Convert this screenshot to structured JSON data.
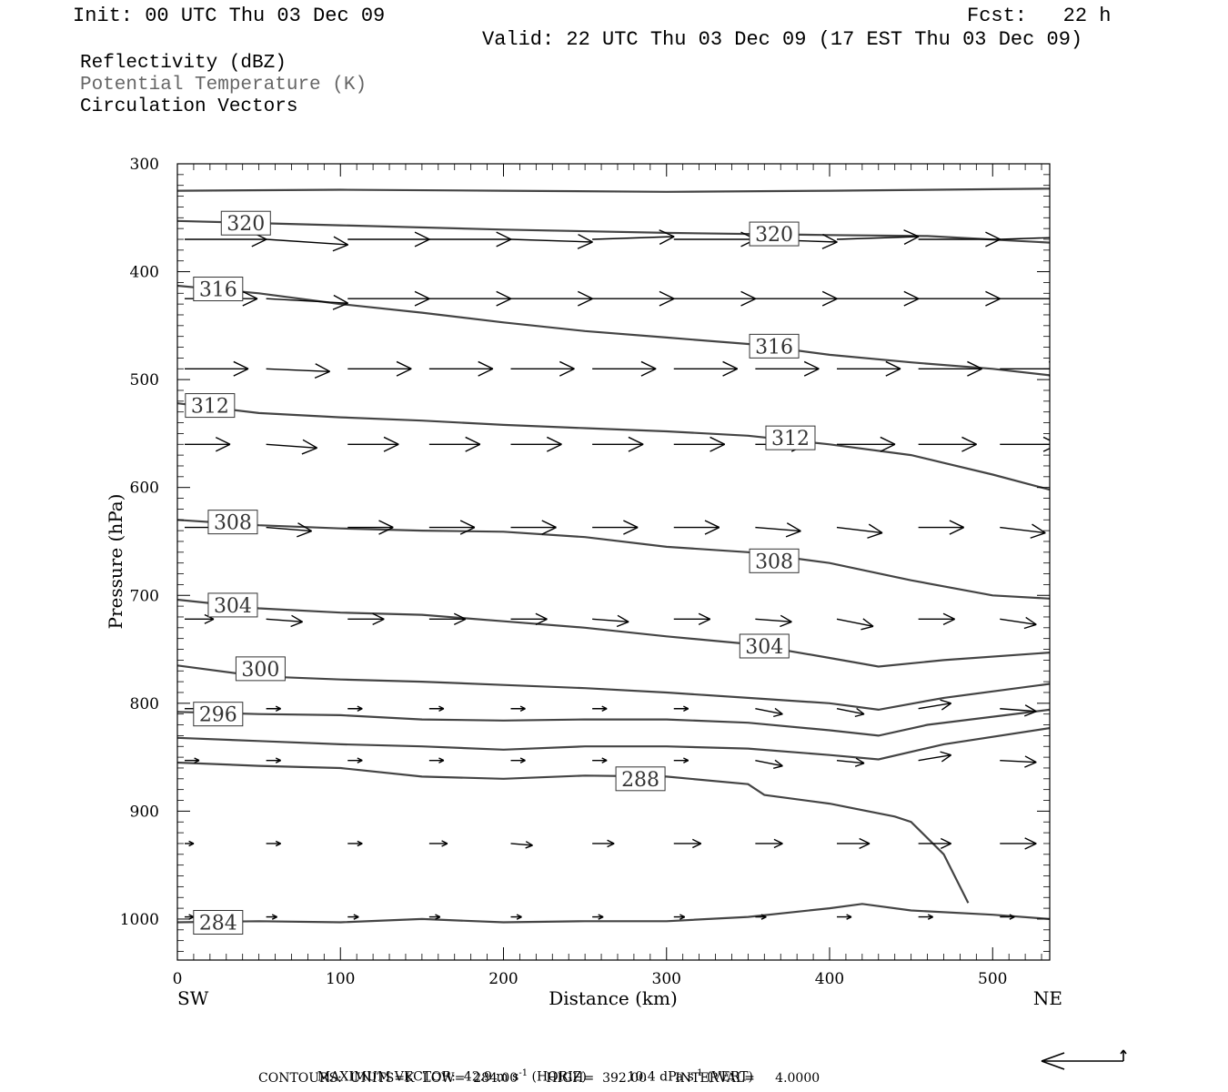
{
  "header": {
    "init": "Init: 00 UTC Thu 03 Dec 09",
    "fcst": "Fcst:   22 h",
    "valid": "Valid: 22 UTC Thu 03 Dec 09 (17 EST Thu 03 Dec 09)"
  },
  "fields": [
    {
      "label": "Reflectivity (dBZ)",
      "color": "#000000"
    },
    {
      "label": "Potential Temperature (K)",
      "color": "#555555"
    },
    {
      "label": "Circulation Vectors",
      "color": "#000000"
    }
  ],
  "footer": {
    "max_vector_prefix": "MAXIMUM VECTOR:",
    "horiz_value": "42.9 m s",
    "horiz_exp": "-1",
    "horiz_label": "(HORIZ)",
    "vert_value": "10.4 dPa s",
    "vert_exp": "-1",
    "vert_label": "(VERT)",
    "contours": "CONTOURS:  UNITS=K  LOW=  284.00       HIGH=  392.00       INTERVAL=     4.0000"
  },
  "chart_data": {
    "type": "line",
    "xlabel": "Distance (km)",
    "ylabel": "Pressure (hPa)",
    "xlim": [
      0,
      535
    ],
    "ylim": [
      1038,
      300
    ],
    "x_ticks": [
      0,
      100,
      200,
      300,
      400,
      500
    ],
    "y_ticks": [
      300,
      400,
      500,
      600,
      700,
      800,
      900,
      1000
    ],
    "left_end_label": "SW",
    "right_end_label": "NE",
    "contour_color": "#444444",
    "vector_color": "#000000",
    "contours": [
      {
        "level": 324,
        "points": [
          [
            0,
            325
          ],
          [
            100,
            324
          ],
          [
            200,
            325
          ],
          [
            300,
            326
          ],
          [
            400,
            325
          ],
          [
            535,
            323
          ]
        ],
        "labels": []
      },
      {
        "level": 320,
        "points": [
          [
            0,
            353
          ],
          [
            100,
            357
          ],
          [
            200,
            361
          ],
          [
            300,
            364
          ],
          [
            400,
            366
          ],
          [
            460,
            367
          ],
          [
            535,
            373
          ]
        ],
        "labels": [
          {
            "x": 42,
            "p": 355,
            "text": "320"
          },
          {
            "x": 366,
            "p": 365,
            "text": "320"
          }
        ]
      },
      {
        "level": 316,
        "points": [
          [
            0,
            413
          ],
          [
            50,
            420
          ],
          [
            100,
            430
          ],
          [
            150,
            438
          ],
          [
            200,
            447
          ],
          [
            250,
            455
          ],
          [
            300,
            461
          ],
          [
            350,
            467
          ],
          [
            400,
            477
          ],
          [
            450,
            484
          ],
          [
            500,
            490
          ],
          [
            535,
            496
          ]
        ],
        "labels": [
          {
            "x": 25,
            "p": 416,
            "text": "316"
          },
          {
            "x": 366,
            "p": 469,
            "text": "316"
          }
        ]
      },
      {
        "level": 312,
        "points": [
          [
            0,
            522
          ],
          [
            50,
            531
          ],
          [
            100,
            535
          ],
          [
            150,
            538
          ],
          [
            200,
            542
          ],
          [
            250,
            545
          ],
          [
            300,
            548
          ],
          [
            350,
            552
          ],
          [
            400,
            560
          ],
          [
            450,
            570
          ],
          [
            500,
            588
          ],
          [
            535,
            602
          ]
        ],
        "labels": [
          {
            "x": 20,
            "p": 524,
            "text": "312"
          },
          {
            "x": 376,
            "p": 554,
            "text": "312"
          }
        ]
      },
      {
        "level": 308,
        "points": [
          [
            0,
            630
          ],
          [
            50,
            635
          ],
          [
            100,
            638
          ],
          [
            150,
            640
          ],
          [
            200,
            641
          ],
          [
            250,
            646
          ],
          [
            300,
            655
          ],
          [
            350,
            660
          ],
          [
            400,
            670
          ],
          [
            450,
            686
          ],
          [
            500,
            700
          ],
          [
            535,
            703
          ]
        ],
        "labels": [
          {
            "x": 34,
            "p": 632,
            "text": "308"
          },
          {
            "x": 366,
            "p": 668,
            "text": "308"
          }
        ]
      },
      {
        "level": 304,
        "points": [
          [
            0,
            704
          ],
          [
            50,
            712
          ],
          [
            100,
            716
          ],
          [
            150,
            718
          ],
          [
            200,
            724
          ],
          [
            250,
            730
          ],
          [
            300,
            738
          ],
          [
            350,
            745
          ],
          [
            400,
            758
          ],
          [
            430,
            766
          ],
          [
            470,
            760
          ],
          [
            535,
            753
          ]
        ],
        "labels": [
          {
            "x": 34,
            "p": 709,
            "text": "304"
          },
          {
            "x": 360,
            "p": 747,
            "text": "304"
          }
        ]
      },
      {
        "level": 300,
        "points": [
          [
            0,
            765
          ],
          [
            50,
            775
          ],
          [
            100,
            778
          ],
          [
            150,
            780
          ],
          [
            200,
            783
          ],
          [
            250,
            786
          ],
          [
            300,
            790
          ],
          [
            350,
            795
          ],
          [
            400,
            800
          ],
          [
            430,
            806
          ],
          [
            470,
            795
          ],
          [
            535,
            782
          ]
        ],
        "labels": [
          {
            "x": 51,
            "p": 768,
            "text": "300"
          }
        ]
      },
      {
        "level": 296,
        "points": [
          [
            0,
            808
          ],
          [
            50,
            810
          ],
          [
            100,
            811
          ],
          [
            150,
            815
          ],
          [
            200,
            816
          ],
          [
            250,
            815
          ],
          [
            300,
            815
          ],
          [
            350,
            818
          ],
          [
            400,
            825
          ],
          [
            430,
            830
          ],
          [
            460,
            820
          ],
          [
            535,
            806
          ]
        ],
        "labels": [
          {
            "x": 25,
            "p": 810,
            "text": "296"
          }
        ]
      },
      {
        "level": 292,
        "points": [
          [
            0,
            832
          ],
          [
            50,
            835
          ],
          [
            100,
            838
          ],
          [
            150,
            840
          ],
          [
            200,
            843
          ],
          [
            250,
            840
          ],
          [
            300,
            840
          ],
          [
            350,
            842
          ],
          [
            400,
            848
          ],
          [
            430,
            852
          ],
          [
            470,
            838
          ],
          [
            535,
            823
          ]
        ],
        "labels": []
      },
      {
        "level": 288,
        "points": [
          [
            0,
            855
          ],
          [
            50,
            858
          ],
          [
            100,
            860
          ],
          [
            150,
            868
          ],
          [
            200,
            870
          ],
          [
            250,
            867
          ],
          [
            300,
            868
          ],
          [
            350,
            875
          ],
          [
            360,
            885
          ],
          [
            400,
            893
          ],
          [
            440,
            905
          ],
          [
            450,
            910
          ],
          [
            470,
            940
          ],
          [
            485,
            985
          ]
        ],
        "labels": [
          {
            "x": 284,
            "p": 870,
            "text": "288"
          }
        ]
      },
      {
        "level": 284,
        "points": [
          [
            0,
            1003
          ],
          [
            50,
            1002
          ],
          [
            100,
            1003
          ],
          [
            150,
            1000
          ],
          [
            200,
            1003
          ],
          [
            250,
            1002
          ],
          [
            300,
            1002
          ],
          [
            350,
            998
          ],
          [
            400,
            990
          ],
          [
            420,
            986
          ],
          [
            450,
            992
          ],
          [
            500,
            996
          ],
          [
            535,
            1000
          ]
        ],
        "labels": [
          {
            "x": 25,
            "p": 1003,
            "text": "284"
          }
        ]
      }
    ],
    "vectors": [
      {
        "p": 370,
        "x": [
          0,
          50,
          100,
          150,
          200,
          250,
          300,
          350,
          400,
          450,
          500
        ],
        "u": [
          45,
          45,
          45,
          45,
          45,
          45,
          45,
          45,
          45,
          45,
          45
        ],
        "dp": [
          0,
          6,
          0,
          0,
          3,
          -3,
          0,
          3,
          -3,
          0,
          -3
        ]
      },
      {
        "p": 425,
        "x": [
          0,
          50,
          100,
          150,
          200,
          250,
          300,
          350,
          400,
          450,
          500
        ],
        "u": [
          40,
          45,
          45,
          45,
          45,
          45,
          45,
          45,
          45,
          45,
          45
        ],
        "dp": [
          0,
          5,
          0,
          0,
          0,
          0,
          0,
          0,
          0,
          0,
          0
        ]
      },
      {
        "p": 490,
        "x": [
          0,
          50,
          100,
          150,
          200,
          250,
          300,
          350,
          400,
          450,
          500
        ],
        "u": [
          35,
          35,
          35,
          35,
          35,
          35,
          35,
          35,
          35,
          35,
          35
        ],
        "dp": [
          0,
          3,
          0,
          0,
          0,
          0,
          0,
          0,
          0,
          0,
          0
        ]
      },
      {
        "p": 560,
        "x": [
          0,
          50,
          100,
          150,
          200,
          250,
          300,
          350,
          400,
          450,
          500
        ],
        "u": [
          25,
          28,
          28,
          28,
          28,
          28,
          28,
          28,
          32,
          32,
          32
        ],
        "dp": [
          0,
          4,
          0,
          0,
          0,
          0,
          0,
          0,
          0,
          0,
          0
        ]
      },
      {
        "p": 637,
        "x": [
          0,
          50,
          100,
          150,
          200,
          250,
          300,
          350,
          400,
          450,
          500
        ],
        "u": [
          22,
          25,
          25,
          25,
          25,
          25,
          25,
          25,
          25,
          25,
          25
        ],
        "dp": [
          0,
          4,
          0,
          0,
          0,
          0,
          0,
          4,
          6,
          0,
          6
        ]
      },
      {
        "p": 722,
        "x": [
          0,
          50,
          100,
          150,
          200,
          250,
          300,
          350,
          400,
          450,
          500
        ],
        "u": [
          16,
          20,
          20,
          20,
          20,
          20,
          20,
          20,
          20,
          20,
          20
        ],
        "dp": [
          0,
          3,
          0,
          0,
          0,
          3,
          0,
          3,
          8,
          0,
          6
        ]
      },
      {
        "p": 805,
        "x": [
          0,
          50,
          100,
          150,
          200,
          250,
          300,
          350,
          400,
          450,
          500
        ],
        "u": [
          8,
          8,
          8,
          8,
          8,
          8,
          8,
          15,
          15,
          18,
          20
        ],
        "dp": [
          0,
          0,
          0,
          0,
          0,
          0,
          0,
          6,
          6,
          -6,
          3
        ]
      },
      {
        "p": 853,
        "x": [
          0,
          50,
          100,
          150,
          200,
          250,
          300,
          350,
          400,
          450,
          500
        ],
        "u": [
          8,
          8,
          8,
          8,
          8,
          8,
          8,
          15,
          15,
          18,
          20
        ],
        "dp": [
          0,
          0,
          0,
          0,
          0,
          0,
          0,
          6,
          3,
          -6,
          2
        ]
      },
      {
        "p": 930,
        "x": [
          0,
          50,
          100,
          150,
          200,
          250,
          300,
          350,
          400,
          450,
          500
        ],
        "u": [
          5,
          8,
          8,
          10,
          12,
          12,
          15,
          15,
          18,
          18,
          20
        ],
        "dp": [
          0,
          0,
          0,
          0,
          2,
          0,
          0,
          0,
          0,
          0,
          0
        ]
      },
      {
        "p": 998,
        "x": [
          0,
          50,
          100,
          150,
          200,
          250,
          300,
          350,
          400,
          450,
          500
        ],
        "u": [
          5,
          6,
          6,
          6,
          6,
          6,
          6,
          6,
          8,
          8,
          8
        ],
        "dp": [
          0,
          0,
          0,
          0,
          0,
          0,
          0,
          0,
          0,
          0,
          0
        ]
      }
    ]
  }
}
